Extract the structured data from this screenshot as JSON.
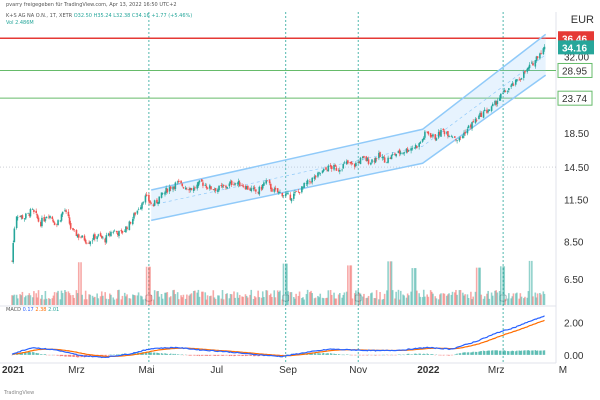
{
  "header": {
    "publisher": "pvarry freigegeben für TradingView.com, Apr 13, 2022 16:50 UTC+2",
    "instrument": "K+S AG NA O.N., 1T, XETR",
    "ohlc": "O32.50  H35.24  L32.38  C34.16  +1.77 (+5.46%)",
    "volume": "Vol  2.486M"
  },
  "currency": "EUR",
  "footer": "TradingView",
  "macd_legend": {
    "name": "MACD",
    "v1": "0.17",
    "v2": "2.38",
    "v3": "2.01"
  },
  "colors": {
    "up": "#26a69a",
    "down": "#ef5350",
    "resistance": "#e53935",
    "support": "#66bb6a",
    "channel": "#90caf9",
    "macd": "#2962ff",
    "signal": "#ff6d00",
    "vline": "#26a69a"
  },
  "chart_data": {
    "type": "candlestick",
    "x_ticks": [
      "2021",
      "Mrz",
      "Mai",
      "Jul",
      "Sep",
      "Nov",
      "2022",
      "Mrz",
      "M"
    ],
    "y_ticks": [
      36.46,
      34.16,
      32.0,
      28.95,
      23.74,
      18.5,
      14.5,
      11.5,
      8.5,
      6.5
    ],
    "y_tick_labels": [
      "36.46",
      "34.16",
      "32.00",
      "28.95",
      "23.74",
      "18.50",
      "14.50",
      "11.50",
      "8.50",
      "6.50"
    ],
    "y_scale": "log",
    "ylim": [
      5.4,
      44
    ],
    "horizontal_lines": [
      {
        "value": 36.46,
        "kind": "resistance"
      },
      {
        "value": 28.95,
        "kind": "support"
      },
      {
        "value": 23.74,
        "kind": "support"
      }
    ],
    "price_badges": [
      {
        "value": 36.46,
        "label": "36.46",
        "color": "#e53935"
      },
      {
        "value": 34.16,
        "label": "34.16",
        "color": "#26a69a"
      }
    ],
    "trend_channel": {
      "upper": [
        [
          "2021-05-05",
          12.3
        ],
        [
          "2021-12-27",
          19.0
        ],
        [
          "2022-04-13",
          37.5
        ]
      ],
      "lower": [
        [
          "2021-05-05",
          9.9
        ],
        [
          "2021-12-27",
          14.9
        ],
        [
          "2022-04-13",
          28.0
        ]
      ]
    },
    "price_path": [
      [
        "2021-01-04",
        7.4
      ],
      [
        "2021-01-08",
        10.3
      ],
      [
        "2021-01-15",
        10.1
      ],
      [
        "2021-01-22",
        10.6
      ],
      [
        "2021-01-29",
        9.7
      ],
      [
        "2021-02-05",
        10.4
      ],
      [
        "2021-02-12",
        9.6
      ],
      [
        "2021-02-19",
        10.7
      ],
      [
        "2021-02-26",
        9.1
      ],
      [
        "2021-03-05",
        8.8
      ],
      [
        "2021-03-12",
        8.5
      ],
      [
        "2021-03-19",
        8.9
      ],
      [
        "2021-03-26",
        8.6
      ],
      [
        "2021-04-02",
        9.2
      ],
      [
        "2021-04-09",
        9.0
      ],
      [
        "2021-04-16",
        9.6
      ],
      [
        "2021-04-23",
        10.6
      ],
      [
        "2021-04-30",
        11.7
      ],
      [
        "2021-05-07",
        11.0
      ],
      [
        "2021-05-14",
        11.8
      ],
      [
        "2021-05-21",
        12.5
      ],
      [
        "2021-05-28",
        12.9
      ],
      [
        "2021-06-04",
        12.6
      ],
      [
        "2021-06-11",
        12.4
      ],
      [
        "2021-06-18",
        13.0
      ],
      [
        "2021-06-25",
        12.5
      ],
      [
        "2021-07-02",
        12.4
      ],
      [
        "2021-07-09",
        12.6
      ],
      [
        "2021-07-16",
        13.0
      ],
      [
        "2021-07-23",
        12.8
      ],
      [
        "2021-07-30",
        12.4
      ],
      [
        "2021-08-06",
        12.1
      ],
      [
        "2021-08-13",
        13.1
      ],
      [
        "2021-08-20",
        12.2
      ],
      [
        "2021-08-27",
        12.0
      ],
      [
        "2021-09-03",
        11.7
      ],
      [
        "2021-09-10",
        12.1
      ],
      [
        "2021-09-17",
        12.8
      ],
      [
        "2021-09-24",
        13.4
      ],
      [
        "2021-10-01",
        14.0
      ],
      [
        "2021-10-08",
        14.5
      ],
      [
        "2021-10-15",
        14.3
      ],
      [
        "2021-10-22",
        14.9
      ],
      [
        "2021-10-29",
        14.7
      ],
      [
        "2021-11-05",
        15.4
      ],
      [
        "2021-11-12",
        15.1
      ],
      [
        "2021-11-19",
        15.7
      ],
      [
        "2021-11-26",
        15.2
      ],
      [
        "2021-12-03",
        15.9
      ],
      [
        "2021-12-10",
        16.2
      ],
      [
        "2021-12-17",
        16.6
      ],
      [
        "2021-12-24",
        17.0
      ],
      [
        "2021-12-31",
        18.6
      ],
      [
        "2022-01-07",
        17.9
      ],
      [
        "2022-01-14",
        18.8
      ],
      [
        "2022-01-21",
        18.3
      ],
      [
        "2022-01-28",
        17.6
      ],
      [
        "2022-02-04",
        19.0
      ],
      [
        "2022-02-11",
        20.2
      ],
      [
        "2022-02-18",
        21.4
      ],
      [
        "2022-02-25",
        22.0
      ],
      [
        "2022-03-04",
        23.8
      ],
      [
        "2022-03-11",
        25.2
      ],
      [
        "2022-03-18",
        26.4
      ],
      [
        "2022-03-25",
        28.2
      ],
      [
        "2022-04-01",
        30.0
      ],
      [
        "2022-04-08",
        32.8
      ],
      [
        "2022-04-13",
        34.16
      ]
    ],
    "volume_spikes": [
      [
        "2021-03-05",
        0.95
      ],
      [
        "2021-05-03",
        0.85
      ],
      [
        "2021-08-30",
        0.92
      ],
      [
        "2021-10-25",
        0.88
      ],
      [
        "2021-11-29",
        0.97
      ],
      [
        "2021-12-20",
        0.82
      ],
      [
        "2022-02-14",
        0.83
      ],
      [
        "2022-03-07",
        0.86
      ],
      [
        "2022-04-01",
        0.98
      ]
    ],
    "macd_path": [
      [
        "2021-01-04",
        0.05
      ],
      [
        "2021-01-22",
        0.45
      ],
      [
        "2021-02-12",
        0.3
      ],
      [
        "2021-03-05",
        -0.05
      ],
      [
        "2021-03-26",
        -0.15
      ],
      [
        "2021-04-16",
        0.05
      ],
      [
        "2021-05-07",
        0.4
      ],
      [
        "2021-05-28",
        0.45
      ],
      [
        "2021-06-18",
        0.3
      ],
      [
        "2021-07-09",
        0.2
      ],
      [
        "2021-07-30",
        0.05
      ],
      [
        "2021-08-27",
        -0.1
      ],
      [
        "2021-09-17",
        0.15
      ],
      [
        "2021-10-08",
        0.35
      ],
      [
        "2021-10-29",
        0.3
      ],
      [
        "2021-11-19",
        0.25
      ],
      [
        "2021-12-10",
        0.3
      ],
      [
        "2021-12-31",
        0.45
      ],
      [
        "2022-01-21",
        0.35
      ],
      [
        "2022-02-11",
        0.8
      ],
      [
        "2022-03-04",
        1.4
      ],
      [
        "2022-03-18",
        1.7
      ],
      [
        "2022-04-01",
        2.1
      ],
      [
        "2022-04-13",
        2.4
      ]
    ],
    "macd_ylim": [
      -0.5,
      3.0
    ],
    "macd_ticks": [
      2.0,
      0.0
    ],
    "macd_tick_labels": [
      "2.00",
      "0.00"
    ]
  }
}
